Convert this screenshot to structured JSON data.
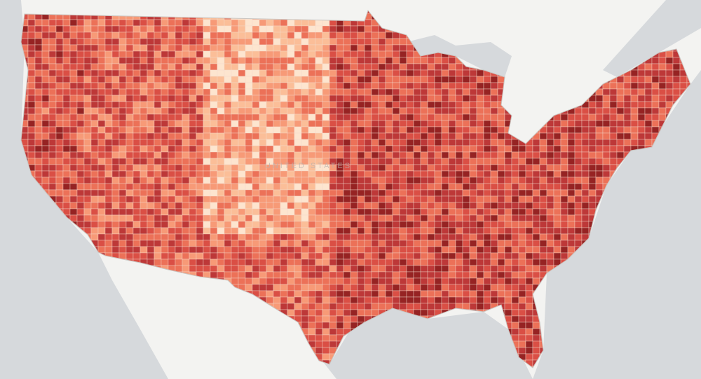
{
  "map": {
    "label": "UNITED STATES"
  }
}
